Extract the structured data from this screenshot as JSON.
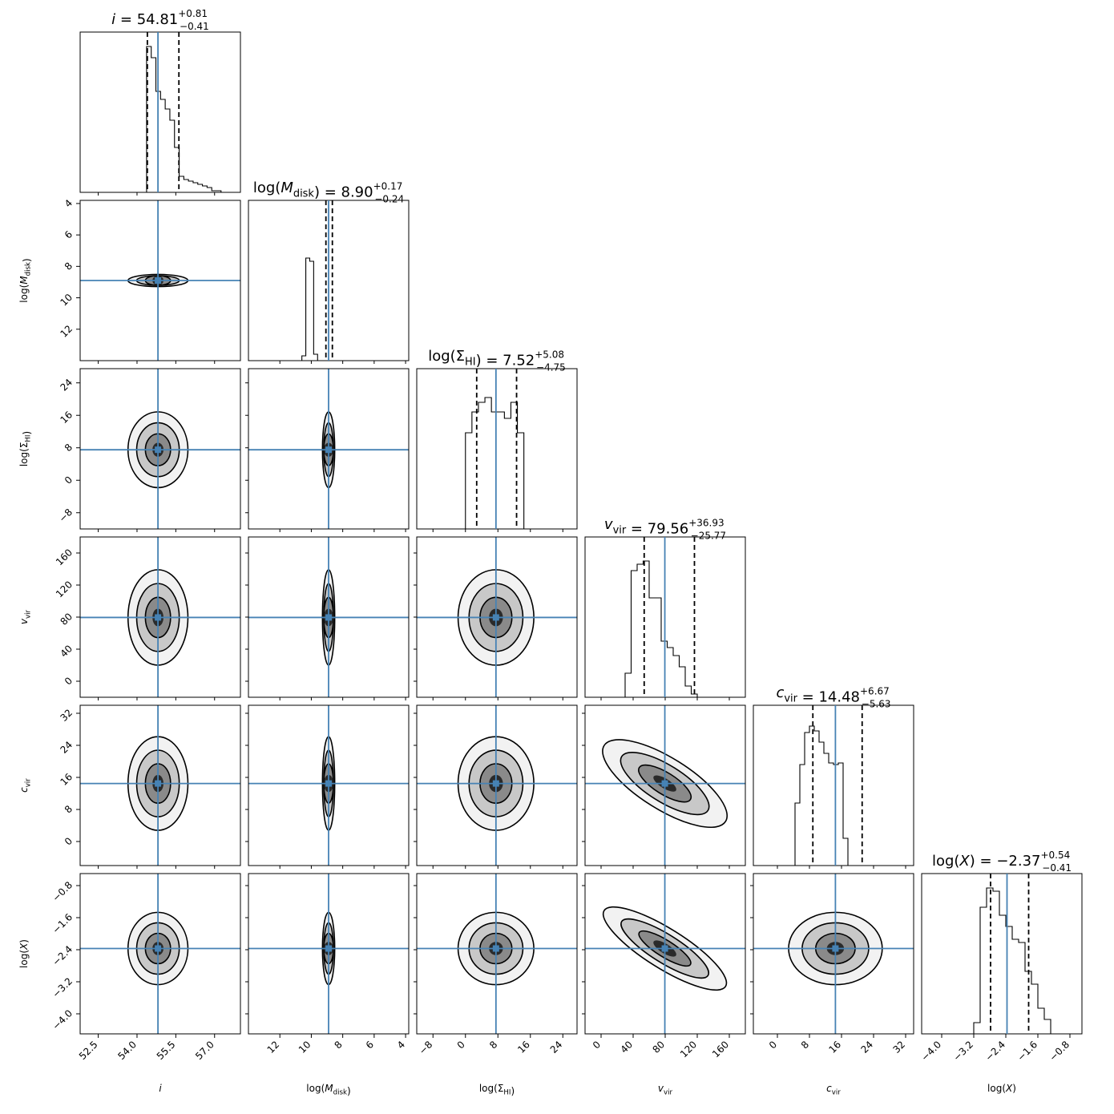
{
  "chart_data": {
    "type": "corner",
    "parameters": [
      {
        "label": "i",
        "value": "54.81",
        "plus": "+0.81",
        "minus": "−0.41",
        "truth": 54.81,
        "q16": 54.4,
        "q84": 55.62,
        "range": [
          51.8,
          58.0
        ],
        "ticks": [
          "52.5",
          "54.0",
          "55.5",
          "57.0"
        ],
        "tick_values": [
          52.5,
          54.0,
          55.5,
          57.0
        ]
      },
      {
        "label": "log(M_disk)",
        "value": "8.90",
        "plus": "+0.17",
        "minus": "−0.24",
        "truth": 8.9,
        "q16": 8.66,
        "q84": 9.07,
        "range": [
          14.0,
          3.8
        ],
        "ticks": [
          "12",
          "10",
          "8",
          "6",
          "4"
        ],
        "tick_values": [
          12,
          10,
          8,
          6,
          4
        ]
      },
      {
        "label": "log(Σ_HI)",
        "value": "7.52",
        "plus": "+5.08",
        "minus": "−4.75",
        "truth": 7.52,
        "q16": 2.77,
        "q84": 12.6,
        "range": [
          -12.0,
          27.5
        ],
        "ticks": [
          "−8",
          "0",
          "8",
          "16",
          "24"
        ],
        "tick_values": [
          -8,
          0,
          8,
          16,
          24
        ]
      },
      {
        "label": "v_vir",
        "value": "79.56",
        "plus": "+36.93",
        "minus": "−25.77",
        "truth": 79.56,
        "q16": 53.79,
        "q84": 116.49,
        "range": [
          -20,
          180
        ],
        "ticks": [
          "0",
          "40",
          "80",
          "120",
          "160"
        ],
        "tick_values": [
          0,
          40,
          80,
          120,
          160
        ]
      },
      {
        "label": "c_vir",
        "value": "14.48",
        "plus": "+6.67",
        "minus": "−5.63",
        "truth": 14.48,
        "q16": 8.85,
        "q84": 21.15,
        "range": [
          -6,
          34
        ],
        "ticks": [
          "0",
          "8",
          "16",
          "24",
          "32"
        ],
        "tick_values": [
          0,
          8,
          16,
          24,
          32
        ]
      },
      {
        "label": "log(X)",
        "value": "−2.37",
        "plus": "+0.54",
        "minus": "−0.41",
        "truth": -2.37,
        "q16": -2.78,
        "q84": -1.83,
        "range": [
          -4.5,
          -0.5
        ],
        "ticks": [
          "−4.0",
          "−3.2",
          "−2.4",
          "−1.6",
          "−0.8"
        ],
        "tick_values": [
          -4.0,
          -3.2,
          -2.4,
          -1.6,
          -0.8
        ]
      }
    ],
    "histograms": [
      {
        "edges_start": 53.4,
        "bin_width": 0.2,
        "counts": [
          0,
          0,
          0,
          0,
          0,
          0,
          0,
          0,
          0,
          0,
          0,
          0,
          0,
          0,
          0,
          0,
          0,
          0,
          0,
          0
        ]
      },
      {
        "edges_start": 9.6,
        "bin_width": 0.25,
        "counts": [
          0.04,
          0.62,
          0.64,
          0.03
        ]
      },
      {
        "edges_start": 0,
        "bin_width": 1.6,
        "counts": [
          0.6,
          0.73,
          0.79,
          0.82,
          0.73,
          0.73,
          0.69,
          0.79,
          0.6
        ]
      },
      {
        "edges_start": 30,
        "bin_width": 7.5,
        "counts": [
          0.15,
          0.79,
          0.83,
          0.85,
          0.62,
          0.62,
          0.35,
          0.31,
          0.26,
          0.19,
          0.07,
          0.02
        ]
      },
      {
        "edges_start": 4.4,
        "bin_width": 1.2,
        "counts": [
          0.39,
          0.63,
          0.83,
          0.87,
          0.84,
          0.77,
          0.7,
          0.64,
          0.63,
          0.64,
          0.17
        ]
      },
      {
        "edges_start": -3.2,
        "bin_width": 0.16,
        "counts": [
          0.07,
          0.79,
          0.91,
          0.89,
          0.74,
          0.67,
          0.59,
          0.57,
          0.39,
          0.31,
          0.16,
          0.09
        ]
      }
    ],
    "i_histogram": {
      "edges": [
        54.37,
        54.55,
        54.73,
        54.91,
        55.09,
        55.27,
        55.45,
        55.63,
        55.81,
        55.99,
        56.17,
        56.35,
        56.53,
        56.71,
        56.89,
        57.07,
        57.25,
        57.43
      ],
      "counts": [
        0.91,
        0.84,
        0.63,
        0.58,
        0.52,
        0.45,
        0.28,
        0.1,
        0.08,
        0.07,
        0.06,
        0.05,
        0.04,
        0.03,
        0.01,
        0.01,
        0.0
      ]
    }
  }
}
